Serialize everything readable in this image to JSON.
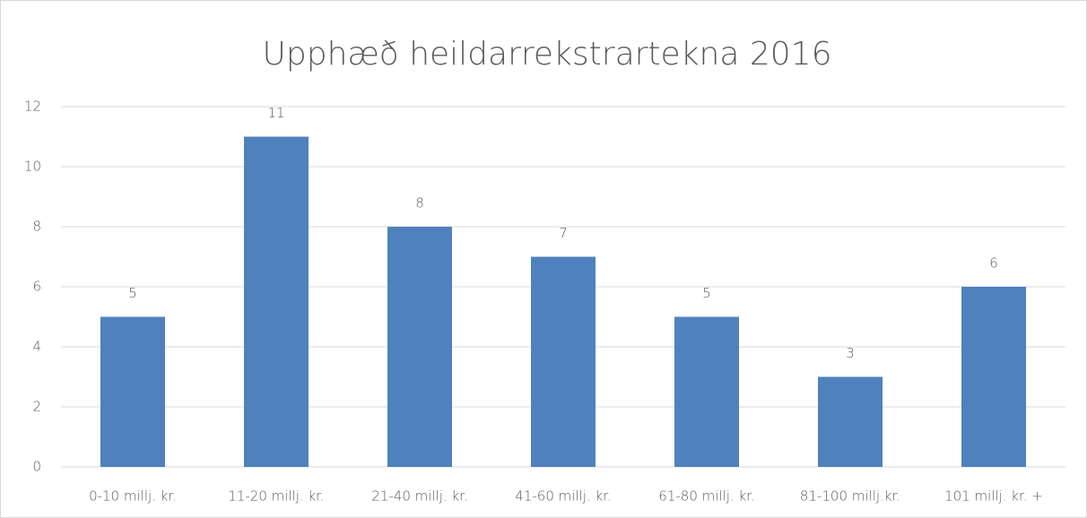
{
  "chart_data": {
    "type": "bar",
    "title": "Upphæð heildarrekstrartekna 2016",
    "categories": [
      "0-10 millj. kr.",
      "11-20 millj. kr.",
      "21-40 millj. kr.",
      "41-60 millj. kr.",
      "61-80 millj. kr.",
      "81-100 millj.kr.",
      "101 millj. kr. +"
    ],
    "values": [
      5,
      11,
      8,
      7,
      5,
      3,
      6
    ],
    "color": "#4f81bd",
    "ylim": [
      0,
      12
    ],
    "yticks": [
      0,
      2,
      4,
      6,
      8,
      10,
      12
    ],
    "grid": true,
    "data_labels": true
  }
}
